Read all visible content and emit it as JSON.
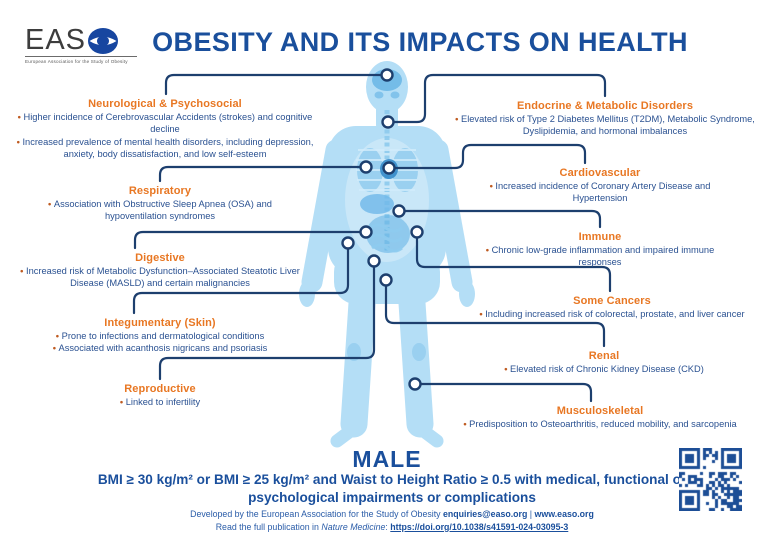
{
  "header": {
    "logo_text": "EASO",
    "logo_tagline": "European Association for the Study of Obesity",
    "title": "OBESITY AND ITS IMPACTS ON HEALTH"
  },
  "colors": {
    "title_blue": "#1a4f9c",
    "body_text_blue": "#2a5191",
    "heading_orange": "#e87723",
    "connector_navy": "#1d3f6e",
    "figure_blue": "#b4def6",
    "qr_blue": "#1d4e96"
  },
  "sections": {
    "left": [
      {
        "title": "Neurological & Psychosocial",
        "bullets": [
          "Higher incidence of Cerebrovascular Accidents (strokes) and cognitive decline",
          "Increased prevalence of mental health disorders, including depression, anxiety, body dissatisfaction, and low self-esteem"
        ]
      },
      {
        "title": "Respiratory",
        "bullets": [
          "Association with Obstructive Sleep Apnea (OSA) and hypoventilation syndromes"
        ]
      },
      {
        "title": "Digestive",
        "bullets": [
          "Increased risk of Metabolic Dysfunction–Associated Steatotic Liver Disease (MASLD) and certain malignancies"
        ]
      },
      {
        "title": "Integumentary (Skin)",
        "bullets": [
          "Prone to infections and dermatological conditions",
          "Associated with acanthosis nigricans and psoriasis"
        ]
      },
      {
        "title": "Reproductive",
        "bullets": [
          "Linked to infertility"
        ]
      }
    ],
    "right": [
      {
        "title": "Endocrine & Metabolic Disorders",
        "bullets": [
          "Elevated risk of Type 2 Diabetes Mellitus (T2DM), Metabolic Syndrome, Dyslipidemia, and hormonal imbalances"
        ]
      },
      {
        "title": "Cardiovascular",
        "bullets": [
          "Increased incidence of Coronary Artery Disease and Hypertension"
        ]
      },
      {
        "title": "Immune",
        "bullets": [
          "Chronic low-grade inflammation and impaired immune responses"
        ]
      },
      {
        "title": "Some Cancers",
        "bullets": [
          "Including increased risk of colorectal, prostate, and liver cancer"
        ]
      },
      {
        "title": "Renal",
        "bullets": [
          "Elevated risk of Chronic Kidney Disease (CKD)"
        ]
      },
      {
        "title": "Musculoskeletal",
        "bullets": [
          "Predisposition to Osteoarthritis, reduced mobility, and sarcopenia"
        ]
      }
    ]
  },
  "figure": {
    "label": "MALE",
    "criteria": "BMI ≥ 30 kg/m² or BMI ≥ 25 kg/m² and Waist to Height Ratio ≥ 0.5 with medical, functional or psychological impairments or complications"
  },
  "footer": {
    "line1_prefix": "Developed by the European Association for the Study of Obesity ",
    "email": "enquiries@easo.org",
    "separator": " | ",
    "website": "www.easo.org",
    "line2_prefix": "Read the full publication in ",
    "journal": "Nature Medicine",
    "colon": ": ",
    "doi": "https://doi.org/10.1038/s41591-024-03095-3"
  }
}
